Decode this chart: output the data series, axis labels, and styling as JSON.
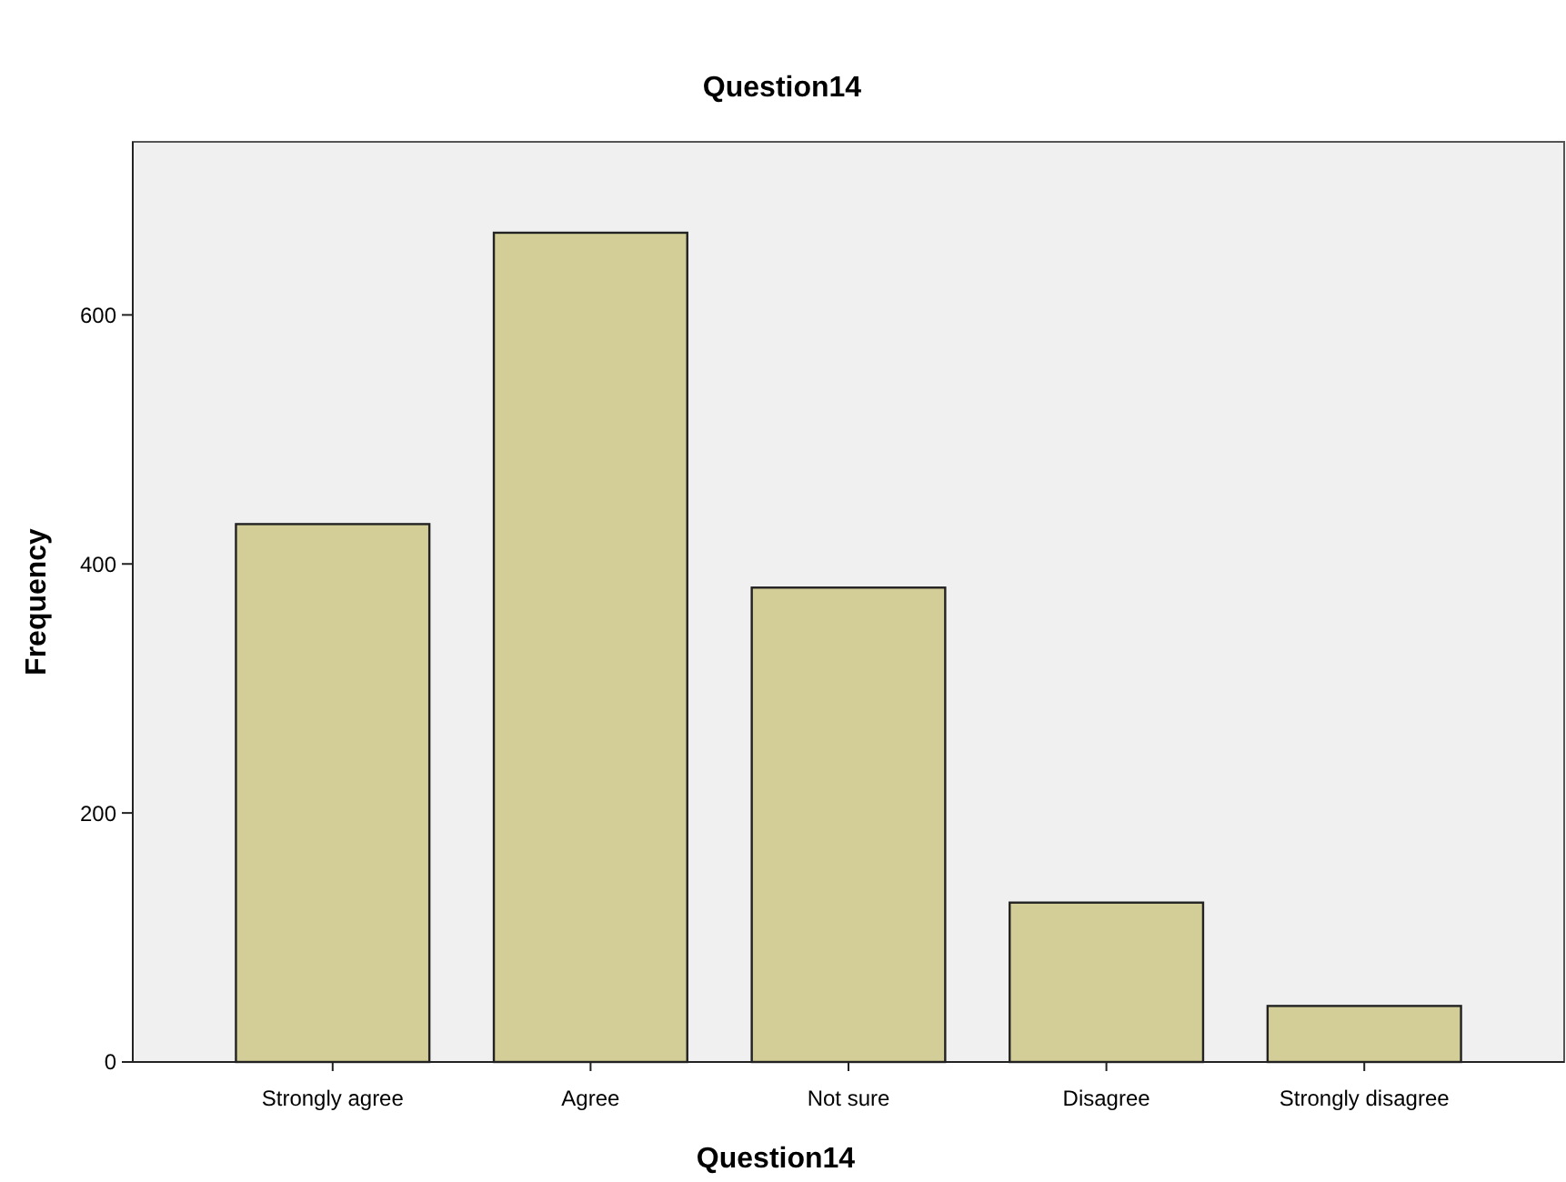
{
  "chart_data": {
    "type": "bar",
    "title": "Question14",
    "xlabel": "Question14",
    "ylabel": "Frequency",
    "categories": [
      "Strongly agree",
      "Agree",
      "Not sure",
      "Disagree",
      "Strongly disagree"
    ],
    "values": [
      432,
      666,
      381,
      128,
      45
    ],
    "color": "#d3ce97",
    "ylim": [
      0,
      739
    ],
    "yticks": [
      0,
      200,
      400,
      600
    ],
    "grid": false
  }
}
